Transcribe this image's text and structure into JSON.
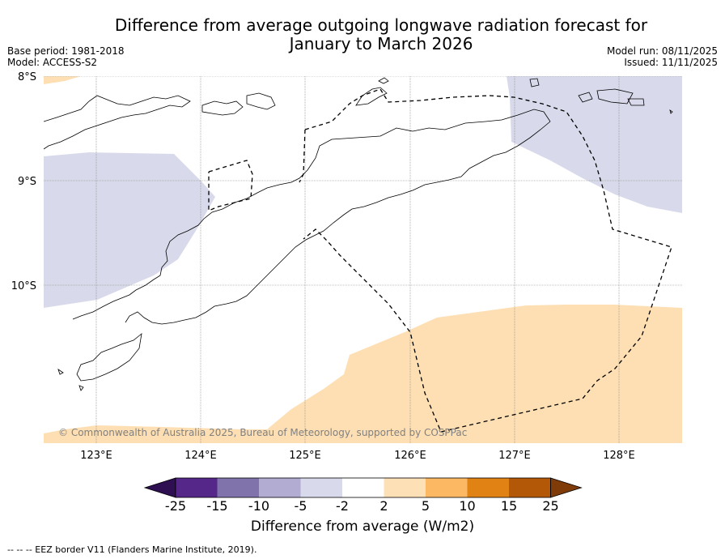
{
  "header": {
    "title_line1": "Difference from average outgoing longwave radiation forecast for",
    "title_line2": "January to March 2026",
    "base_period": "Base period: 1981-2018",
    "model": "Model: ACCESS-S2",
    "model_run": "Model run: 08/11/2025",
    "issued": "Issued: 11/11/2025"
  },
  "map": {
    "lat_labels": [
      "8°S",
      "9°S",
      "10°S"
    ],
    "lon_labels": [
      "123°E",
      "124°E",
      "125°E",
      "126°E",
      "127°E",
      "128°E"
    ],
    "copyright": "© Commonwealth of Australia 2025, Bureau of Meteorology, supported by COSPPac",
    "extent": {
      "lon_min": 122.5,
      "lon_max": 128.6,
      "lat_min": -11.5,
      "lat_max": -8.0
    },
    "regions": [
      {
        "name": "negative-anomaly-west",
        "category": "-5 to -2"
      },
      {
        "name": "negative-anomaly-northeast",
        "category": "-5 to -2"
      },
      {
        "name": "positive-anomaly-south",
        "category": "2 to 5"
      },
      {
        "name": "positive-anomaly-northwest-corner",
        "category": "2 to 5"
      }
    ]
  },
  "colorbar": {
    "ticks": [
      "-25",
      "-15",
      "-10",
      "-5",
      "-2",
      "2",
      "5",
      "10",
      "15",
      "25"
    ],
    "colors": [
      "#2d0f52",
      "#542788",
      "#8073ac",
      "#b2abd2",
      "#d8daeb",
      "#ffffff",
      "#fee0b6",
      "#fdb863",
      "#e08214",
      "#b35806",
      "#7f3b08"
    ],
    "label": "Difference from average (W/m2)"
  },
  "legend": {
    "eez_line": "--  --  -- EEZ border V11 (Flanders Marine Institute, 2019)."
  }
}
